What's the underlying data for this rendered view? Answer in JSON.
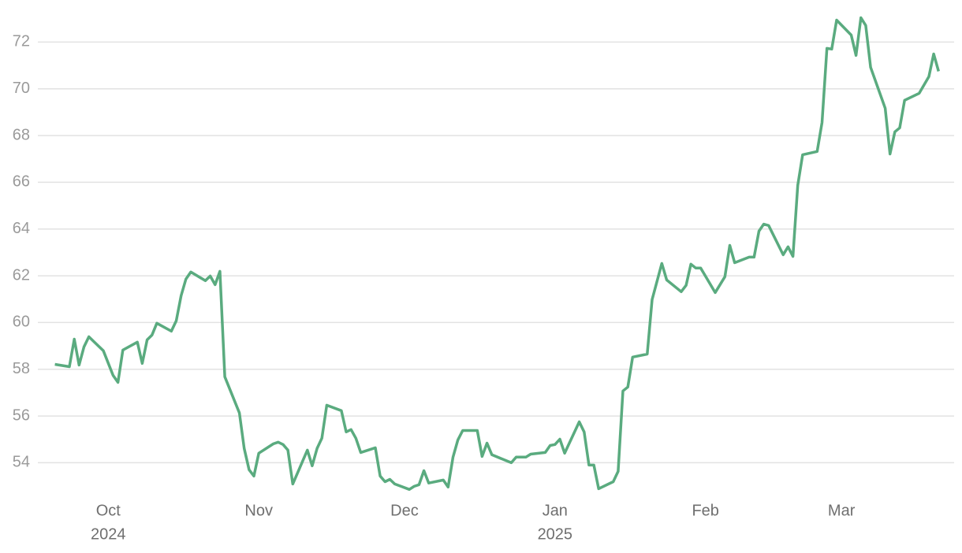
{
  "chart_data": {
    "type": "line",
    "x": [
      -11,
      -8,
      -7,
      -6,
      -5,
      -4,
      -1,
      1,
      2,
      3,
      6,
      7,
      8,
      9,
      10,
      13,
      14,
      15,
      16,
      17,
      20,
      21,
      22,
      23,
      24,
      27,
      28,
      29,
      30,
      31,
      34,
      35,
      36,
      37,
      38,
      41,
      42,
      43,
      44,
      45,
      48,
      49,
      50,
      51,
      52,
      55,
      56,
      57,
      58,
      59,
      62,
      63,
      64,
      65,
      66,
      69,
      70,
      71,
      72,
      73,
      76,
      77,
      78,
      79,
      83,
      84,
      86,
      87,
      90,
      91,
      92,
      93,
      94,
      97,
      98,
      99,
      100,
      101,
      104,
      105,
      106,
      107,
      108,
      111,
      112,
      114,
      115,
      118,
      119,
      120,
      121,
      122,
      125,
      127,
      128,
      129,
      132,
      133,
      134,
      135,
      136,
      139,
      140,
      141,
      142,
      143,
      146,
      147,
      148,
      149,
      150,
      153,
      154,
      155,
      156,
      157,
      160,
      161,
      162,
      163,
      164,
      167,
      169,
      170,
      171
    ],
    "values": [
      58.21,
      58.11,
      59.29,
      58.18,
      58.96,
      59.39,
      58.79,
      57.74,
      57.44,
      58.82,
      59.16,
      58.25,
      59.26,
      59.46,
      59.97,
      59.63,
      60.07,
      61.15,
      61.86,
      62.16,
      61.79,
      61.99,
      61.62,
      62.19,
      57.68,
      56.13,
      54.61,
      53.7,
      53.43,
      54.41,
      54.81,
      54.88,
      54.78,
      54.54,
      53.09,
      54.54,
      53.87,
      54.61,
      55.05,
      56.46,
      56.23,
      55.32,
      55.42,
      55.05,
      54.44,
      54.64,
      53.43,
      53.19,
      53.29,
      53.09,
      52.86,
      52.99,
      53.06,
      53.66,
      53.13,
      53.26,
      52.96,
      54.24,
      54.98,
      55.38,
      55.38,
      54.27,
      54.84,
      54.34,
      54.0,
      54.24,
      54.24,
      54.37,
      54.44,
      54.74,
      54.78,
      55.01,
      54.41,
      55.75,
      55.32,
      53.9,
      53.9,
      52.89,
      53.19,
      53.63,
      57.07,
      57.24,
      58.52,
      58.65,
      60.98,
      62.53,
      61.82,
      61.32,
      61.59,
      62.5,
      62.33,
      62.33,
      61.28,
      61.96,
      63.3,
      62.56,
      62.8,
      62.8,
      63.91,
      64.21,
      64.15,
      62.9,
      63.24,
      62.83,
      65.87,
      67.18,
      67.32,
      68.56,
      71.73,
      71.7,
      72.94,
      72.3,
      71.43,
      73.04,
      72.71,
      70.92,
      69.17,
      67.21,
      68.16,
      68.33,
      69.51,
      69.81,
      70.52,
      71.49,
      70.75
    ],
    "color": "#5aab7f",
    "xlim": [
      -14.5,
      174.2
    ],
    "xticks": [
      {
        "value": 0,
        "label": "Oct",
        "sublabel": "2024"
      },
      {
        "value": 31,
        "label": "Nov"
      },
      {
        "value": 61,
        "label": "Dec"
      },
      {
        "value": 92,
        "label": "Jan",
        "sublabel": "2025"
      },
      {
        "value": 123,
        "label": "Feb"
      },
      {
        "value": 151,
        "label": "Mar"
      }
    ],
    "ylim": [
      52.7,
      73.8
    ],
    "yticks": [
      54,
      56,
      58,
      60,
      62,
      64,
      66,
      68,
      70,
      72
    ],
    "grid": true
  }
}
